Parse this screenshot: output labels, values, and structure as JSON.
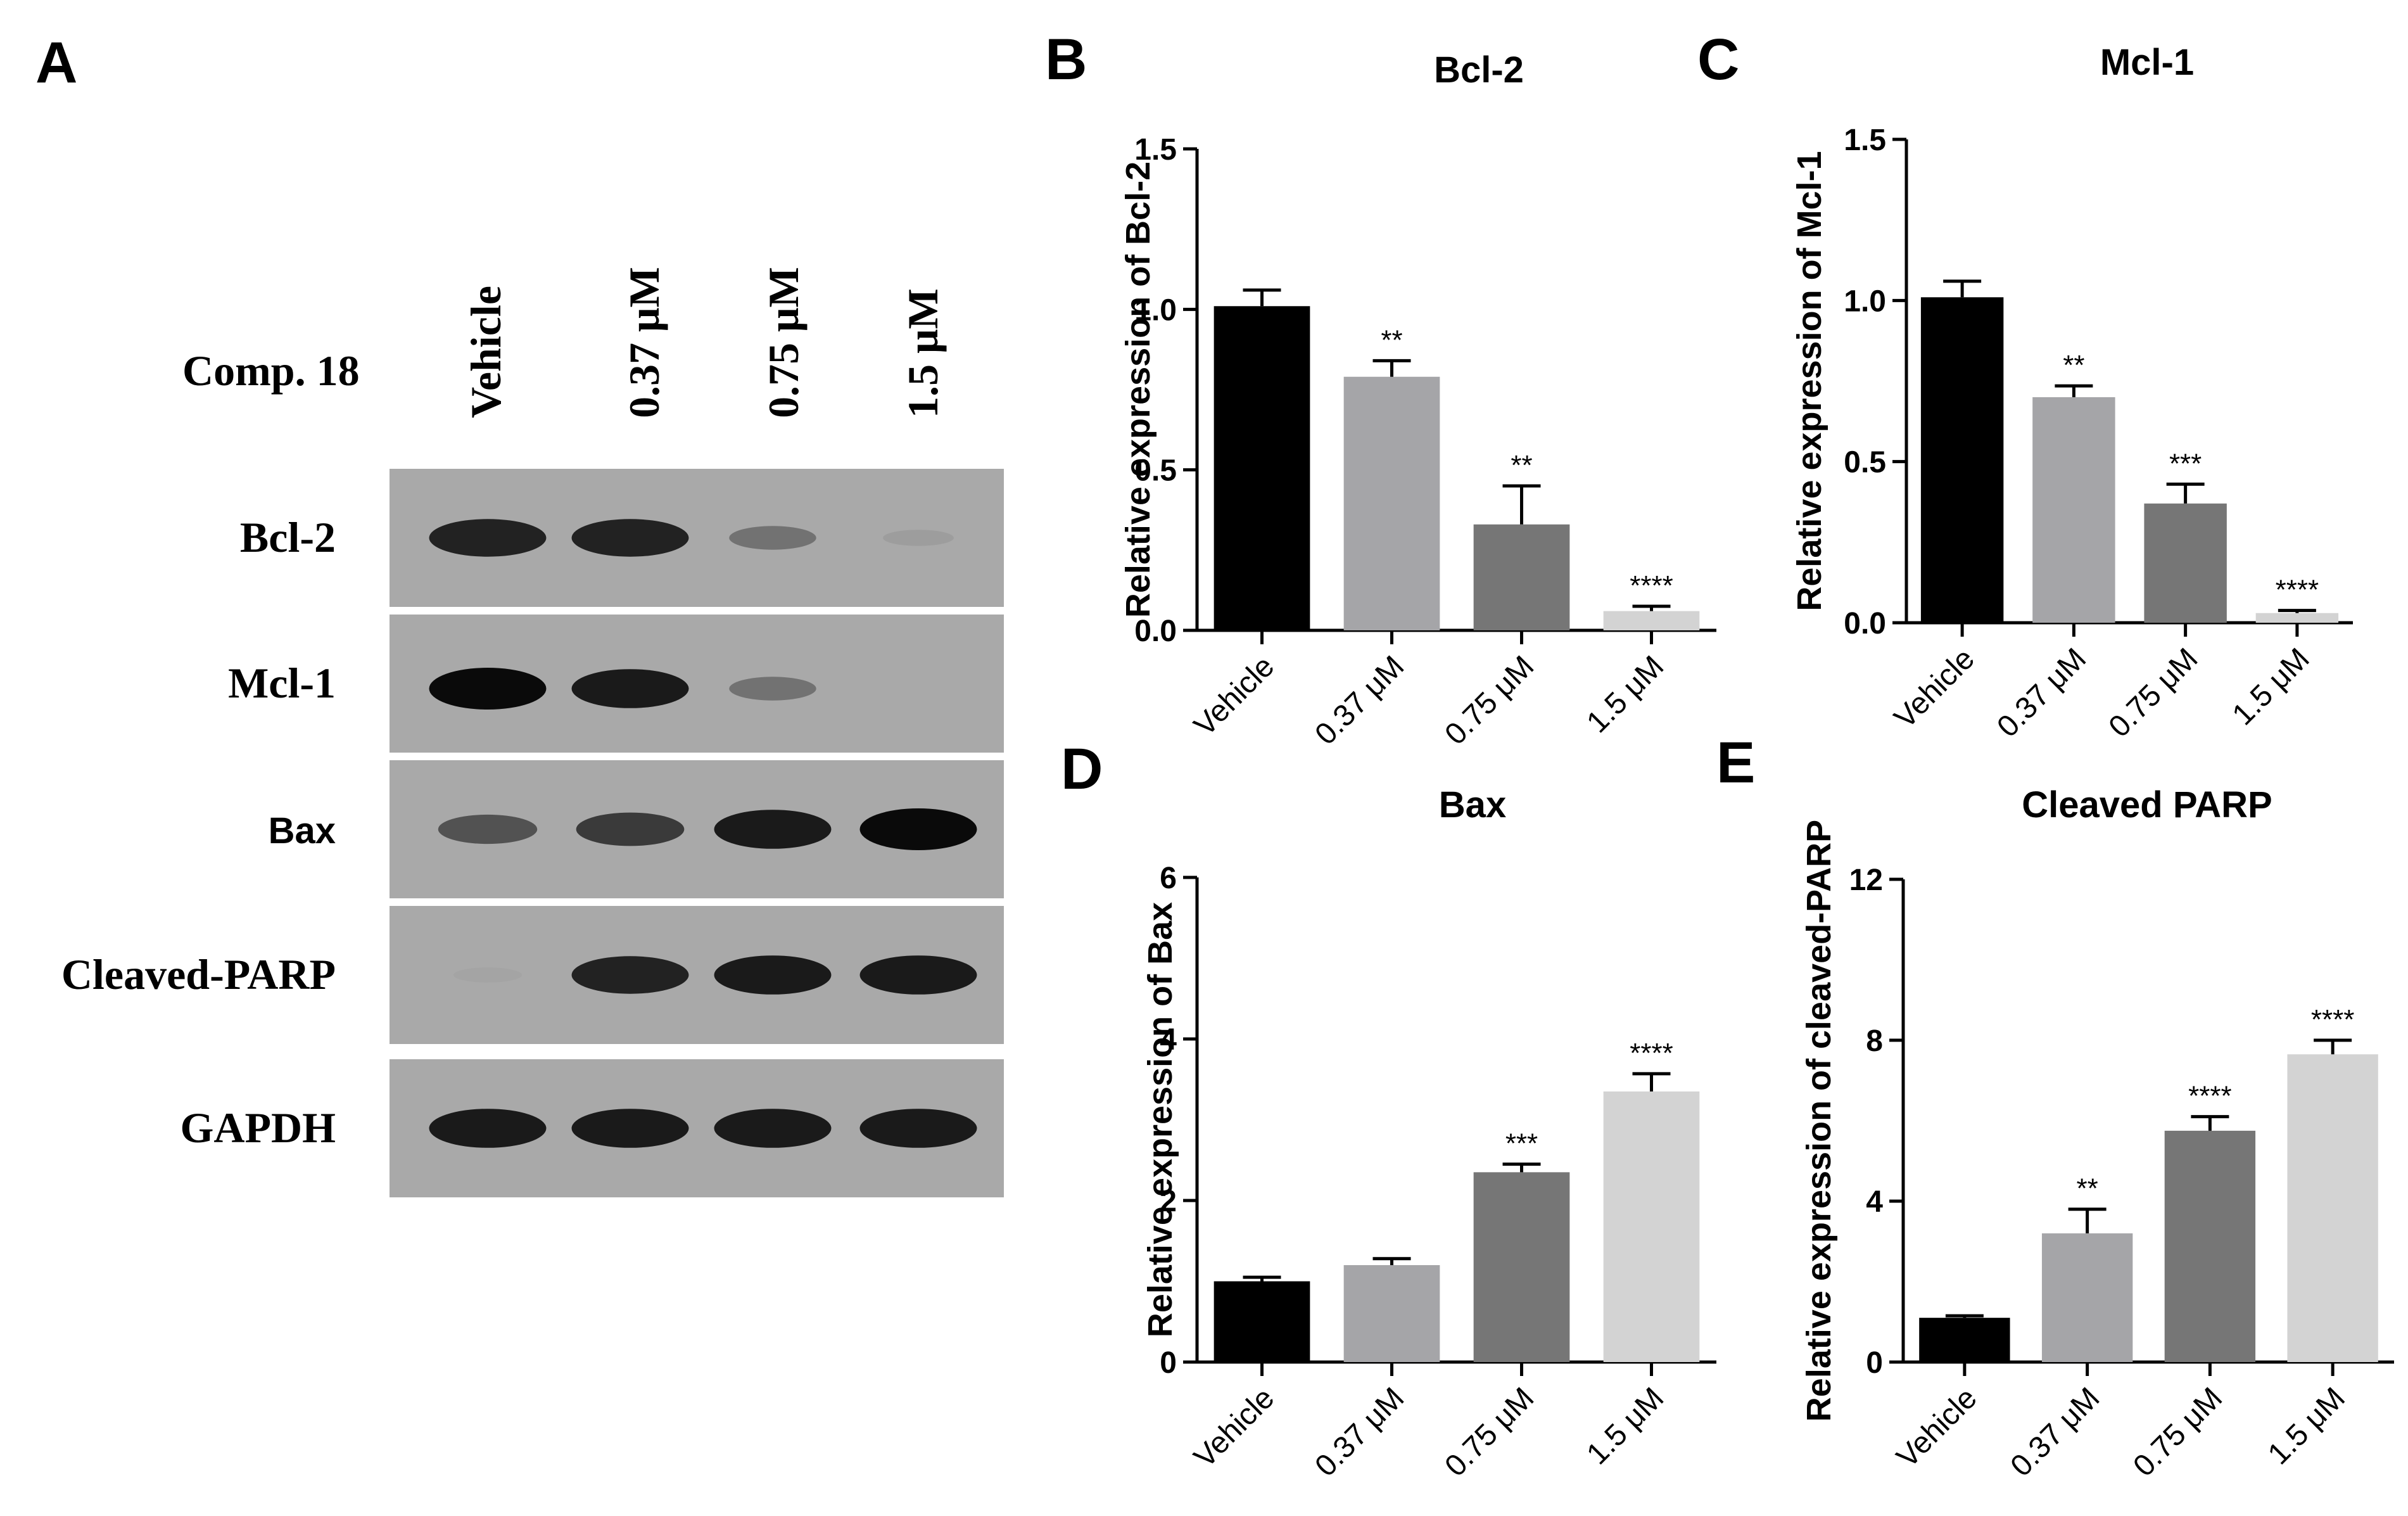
{
  "panel_letters": [
    "A",
    "B",
    "C",
    "D",
    "E"
  ],
  "western_blot": {
    "treatment_label": "Comp. 18",
    "lanes": [
      "Vehicle",
      "0.37 μM",
      "0.75 μM",
      "1.5 μM"
    ],
    "rows": [
      {
        "label": "Bcl-2",
        "band_intensity": [
          0.85,
          0.85,
          0.35,
          0.08
        ]
      },
      {
        "label": "Mcl-1",
        "band_intensity": [
          1.0,
          0.9,
          0.35,
          0.0
        ]
      },
      {
        "label": "Bax",
        "band_intensity": [
          0.55,
          0.7,
          0.9,
          1.0
        ]
      },
      {
        "label": "Cleaved-PARP",
        "band_intensity": [
          0.04,
          0.85,
          0.9,
          0.9
        ]
      },
      {
        "label": "GAPDH",
        "band_intensity": [
          0.9,
          0.9,
          0.9,
          0.9
        ]
      }
    ]
  },
  "chart_data": [
    {
      "panel": "B",
      "type": "bar",
      "title": "Bcl-2",
      "ylabel": "Relative expression of Bcl-2",
      "categories": [
        "Vehicle",
        "0.37 μM",
        "0.75 μM",
        "1.5 μM"
      ],
      "values": [
        1.01,
        0.79,
        0.33,
        0.06
      ],
      "errors": [
        0.05,
        0.05,
        0.12,
        0.015
      ],
      "significance": [
        "",
        "**",
        "**",
        "****"
      ],
      "ylim": [
        0,
        1.5
      ],
      "yticks": [
        "0.0",
        "0.5",
        "1.0",
        "1.5"
      ],
      "colors": [
        "#000000",
        "#a5a5a8",
        "#767676",
        "#d3d3d3"
      ]
    },
    {
      "panel": "C",
      "type": "bar",
      "title": "Mcl-1",
      "ylabel": "Relative expression of Mcl-1",
      "categories": [
        "Vehicle",
        "0.37 μM",
        "0.75 μM",
        "1.5 μM"
      ],
      "values": [
        1.01,
        0.7,
        0.37,
        0.03
      ],
      "errors": [
        0.05,
        0.035,
        0.06,
        0.008
      ],
      "significance": [
        "",
        "**",
        "***",
        "****"
      ],
      "ylim": [
        0,
        1.5
      ],
      "yticks": [
        "0.0",
        "0.5",
        "1.0",
        "1.5"
      ],
      "colors": [
        "#000000",
        "#a5a5a8",
        "#767676",
        "#d3d3d3"
      ]
    },
    {
      "panel": "D",
      "type": "bar",
      "title": "Bax",
      "ylabel": "Relative expression of Bax",
      "categories": [
        "Vehicle",
        "0.37 μM",
        "0.75 μM",
        "1.5 μM"
      ],
      "values": [
        1.0,
        1.2,
        2.35,
        3.35
      ],
      "errors": [
        0.05,
        0.08,
        0.1,
        0.22
      ],
      "significance": [
        "",
        "",
        "***",
        "****"
      ],
      "ylim": [
        0,
        6
      ],
      "yticks": [
        "0",
        "2",
        "4",
        "6"
      ],
      "colors": [
        "#000000",
        "#a5a5a8",
        "#767676",
        "#d3d3d3"
      ]
    },
    {
      "panel": "E",
      "type": "bar",
      "title": "Cleaved PARP",
      "ylabel": "Relative expression of cleaved-PARP",
      "categories": [
        "Vehicle",
        "0.37 μM",
        "0.75 μM",
        "1.5 μM"
      ],
      "values": [
        1.1,
        3.2,
        5.75,
        7.65
      ],
      "errors": [
        0.05,
        0.6,
        0.35,
        0.35
      ],
      "significance": [
        "",
        "**",
        "****",
        "****"
      ],
      "ylim": [
        0,
        12
      ],
      "yticks": [
        "0",
        "4",
        "8",
        "12"
      ],
      "colors": [
        "#000000",
        "#a5a5a8",
        "#767676",
        "#d3d3d3"
      ]
    }
  ]
}
